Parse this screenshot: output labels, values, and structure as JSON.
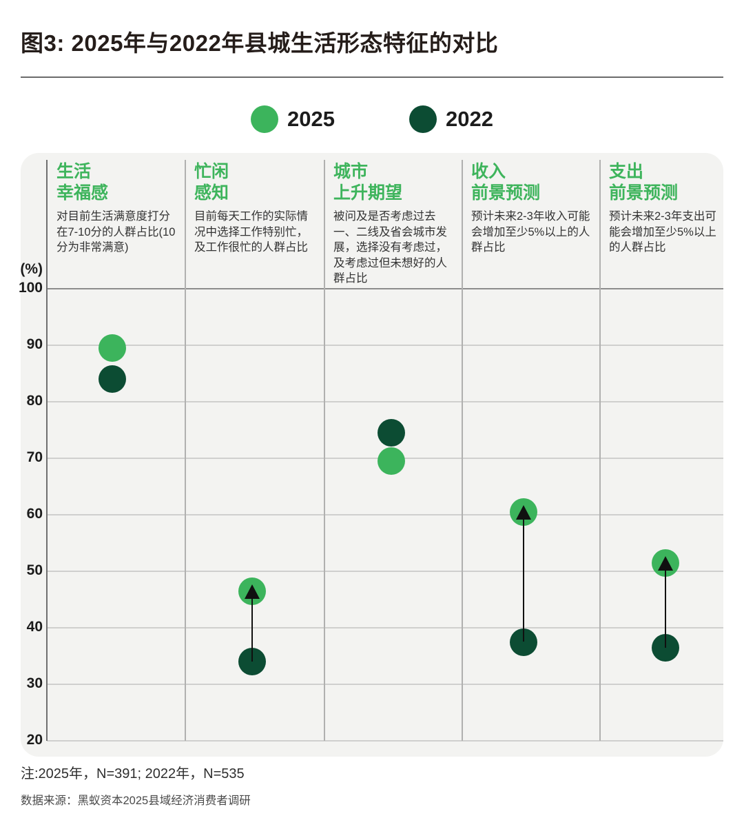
{
  "title": "图3: 2025年与2022年县城生活形态特征的对比",
  "legend": [
    {
      "label": "2025",
      "color": "#3cb45c"
    },
    {
      "label": "2022",
      "color": "#0c4c33"
    }
  ],
  "colors": {
    "light_green": "#3cb45c",
    "dark_green": "#0c4c33",
    "header_green": "#3eb45c",
    "panel_bg": "#f3f3f1",
    "grid": "#cfcfce",
    "grid_top": "#8c8c8c",
    "axis": "#6f6f6f",
    "separator": "#b0b0af",
    "arrow": "#101010"
  },
  "chart_data": {
    "type": "scatter",
    "ylabel": "(%)",
    "ylim": [
      20,
      100
    ],
    "yticks": [
      100,
      90,
      80,
      70,
      60,
      50,
      40,
      30,
      20
    ],
    "grid": "horizontal",
    "legend_position": "top-center",
    "categories": [
      {
        "title": "生活\n幸福感",
        "desc": "对目前生活满意度打分在7-10分的人群占比(10分为非常满意)"
      },
      {
        "title": "忙闲\n感知",
        "desc": "目前每天工作的实际情况中选择工作特别忙，及工作很忙的人群占比"
      },
      {
        "title": "城市\n上升期望",
        "desc": "被问及是否考虑过去一、二线及省会城市发展，选择没有考虑过，及考虑过但未想好的人群占比"
      },
      {
        "title": "收入\n前景预测",
        "desc": "预计未来2-3年收入可能会增加至少5%以上的人群占比"
      },
      {
        "title": "支出\n前景预测",
        "desc": "预计未来2-3年支出可能会增加至少5%以上的人群占比"
      }
    ],
    "series": [
      {
        "name": "2025",
        "color": "#3cb45c",
        "values": [
          89.5,
          46.5,
          69.5,
          60.5,
          51.5
        ]
      },
      {
        "name": "2022",
        "color": "#0c4c33",
        "values": [
          84,
          34,
          74.5,
          37.5,
          36.5
        ]
      }
    ],
    "arrows_2022_to_2025": [
      false,
      true,
      false,
      true,
      true
    ]
  },
  "footer": {
    "note": "注:2025年，N=391; 2022年，N=535",
    "source": "数据来源：黑蚁资本2025县域经济消费者调研"
  }
}
